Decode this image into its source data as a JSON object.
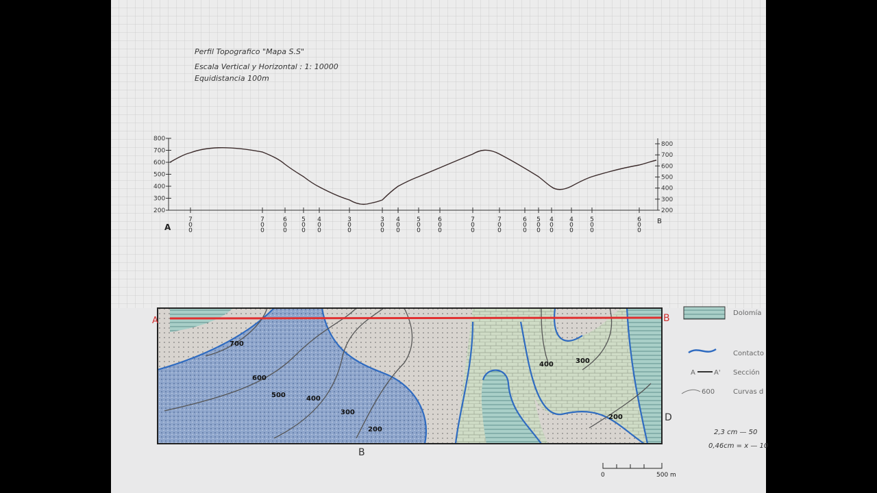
{
  "header": {
    "title": "Perfil Topografico \"Mapa S.S\"",
    "scale": "Escala Vertical y Horizontal : 1: 10000",
    "equidistance": "Equidistancia 100m"
  },
  "profile": {
    "y_labels_left": [
      "800",
      "700",
      "600",
      "500",
      "400",
      "300",
      "200"
    ],
    "y_labels_right": [
      "800",
      "700",
      "600",
      "500",
      "400",
      "300",
      "200"
    ],
    "start": "A",
    "end": "B",
    "x_labels": [
      "700",
      "700",
      "600",
      "500",
      "400",
      "300",
      "300",
      "400",
      "500",
      "600",
      "700",
      "700",
      "600",
      "500",
      "400",
      "400",
      "500",
      "600"
    ]
  },
  "map": {
    "point_a": "A",
    "point_b": "B",
    "point_b_bottom": "B",
    "point_d": "D",
    "contours": [
      "700",
      "600",
      "500",
      "400",
      "300",
      "200",
      "400",
      "300",
      "200"
    ],
    "legend": [
      "Dolomía",
      "Contacto",
      "Sección",
      "Curvas d"
    ],
    "legend_samples": [
      "A",
      "A'",
      "600"
    ],
    "scale": [
      "0",
      "500 m"
    ],
    "notes": [
      "2,3 cm — 50",
      "0,46cm = x — 10"
    ]
  }
}
